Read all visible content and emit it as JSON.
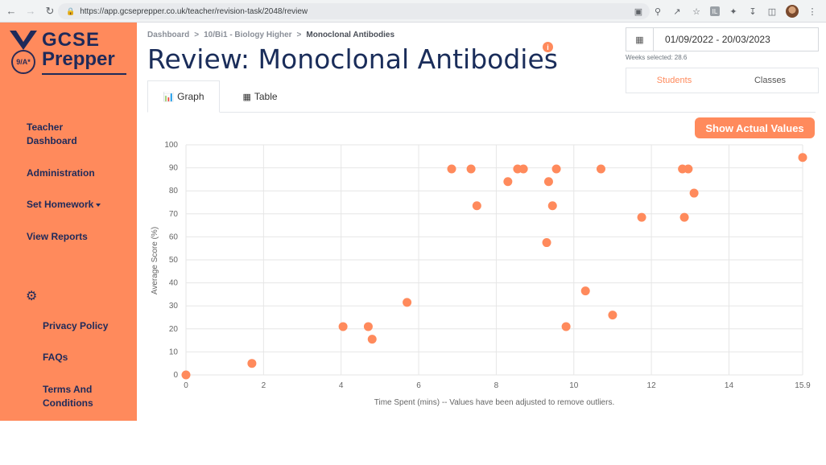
{
  "browser": {
    "url": "https://app.gcseprepper.co.uk/teacher/revision-task/2048/review",
    "ext_label": "IL"
  },
  "sidebar": {
    "logo": {
      "line1": "GCSE",
      "line2": "Prepper",
      "badge": "9/A*"
    },
    "items": [
      {
        "label_1": "Teacher",
        "label_2": "Dashboard"
      },
      {
        "label": "Administration"
      },
      {
        "label": "Set Homework"
      },
      {
        "label": "View Reports"
      }
    ],
    "sub_items": [
      {
        "label": "Privacy Policy"
      },
      {
        "label": "FAQs"
      },
      {
        "label_1": "Terms And",
        "label_2": "Conditions"
      }
    ]
  },
  "breadcrumb": {
    "items": [
      "Dashboard",
      "10/Bi1 - Biology Higher",
      "Monoclonal Antibodies"
    ],
    "separator": ">"
  },
  "page": {
    "title": "Review: Monoclonal Antibodies",
    "info_glyph": "i"
  },
  "tabs": [
    {
      "label": "Graph",
      "active": true
    },
    {
      "label": "Table",
      "active": false
    }
  ],
  "date_filter": {
    "range": "01/09/2022 - 20/03/2023",
    "weeks_selected": "Weeks selected: 28.6"
  },
  "view_toggle": {
    "students": "Students",
    "classes": "Classes"
  },
  "show_actual_values_label": "Show Actual Values",
  "colors": {
    "accent": "#ff8a5c",
    "navy": "#1e2a5a",
    "title": "#1a2d5a"
  },
  "chart_data": {
    "type": "scatter",
    "title": "",
    "xlabel": "Time Spent (mins) -- Values have been adjusted to remove outliers.",
    "ylabel": "Average Score (%)",
    "xlim": [
      0,
      15.9
    ],
    "ylim": [
      0,
      100
    ],
    "xticks": [
      0,
      2,
      4,
      6,
      8,
      10,
      12,
      14,
      15.9
    ],
    "yticks": [
      0,
      10,
      20,
      30,
      40,
      50,
      60,
      70,
      80,
      90,
      100
    ],
    "grid": true,
    "color": "#ff8a5c",
    "points": [
      {
        "x": 0,
        "y": 0
      },
      {
        "x": 1.7,
        "y": 5
      },
      {
        "x": 4.05,
        "y": 21
      },
      {
        "x": 4.7,
        "y": 21
      },
      {
        "x": 4.8,
        "y": 15.5
      },
      {
        "x": 5.7,
        "y": 31.5
      },
      {
        "x": 6.85,
        "y": 89.5
      },
      {
        "x": 7.35,
        "y": 89.5
      },
      {
        "x": 7.5,
        "y": 73.5
      },
      {
        "x": 8.3,
        "y": 84
      },
      {
        "x": 8.55,
        "y": 89.5
      },
      {
        "x": 8.7,
        "y": 89.5
      },
      {
        "x": 9.3,
        "y": 57.5
      },
      {
        "x": 9.35,
        "y": 84
      },
      {
        "x": 9.45,
        "y": 73.5
      },
      {
        "x": 9.55,
        "y": 89.5
      },
      {
        "x": 9.8,
        "y": 21
      },
      {
        "x": 10.3,
        "y": 36.5
      },
      {
        "x": 10.7,
        "y": 89.5
      },
      {
        "x": 11.0,
        "y": 26
      },
      {
        "x": 11.75,
        "y": 68.5
      },
      {
        "x": 12.8,
        "y": 89.5
      },
      {
        "x": 12.85,
        "y": 68.5
      },
      {
        "x": 12.95,
        "y": 89.5
      },
      {
        "x": 13.1,
        "y": 79
      },
      {
        "x": 15.9,
        "y": 94.5
      }
    ]
  }
}
